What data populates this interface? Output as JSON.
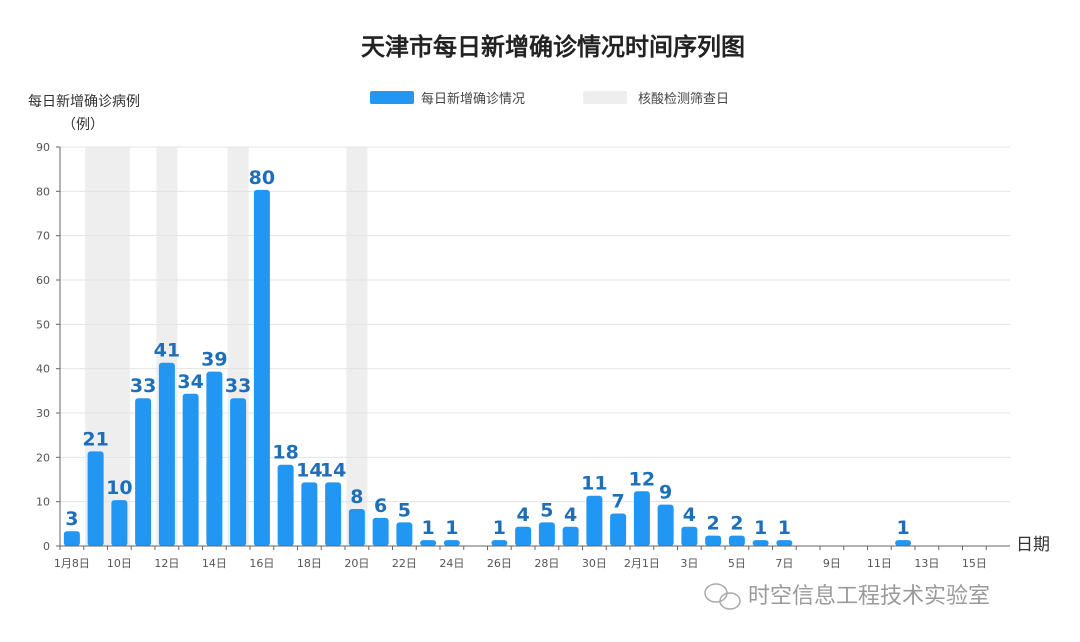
{
  "chart_data": {
    "type": "bar",
    "title": "天津市每日新增确诊情况时间序列图",
    "ylabel": "每日新增确诊病例",
    "ylabel_unit": "（例）",
    "xlabel": "日期",
    "ylim": [
      0,
      90
    ],
    "yticks": [
      0,
      10,
      20,
      30,
      40,
      50,
      60,
      70,
      80,
      90
    ],
    "grid": true,
    "legend_position": "top-center",
    "series": [
      {
        "name": "每日新增确诊情况",
        "color": "#2196f3",
        "values": [
          3,
          21,
          10,
          33,
          41,
          34,
          39,
          33,
          80,
          18,
          14,
          14,
          8,
          6,
          5,
          1,
          1,
          0,
          1,
          4,
          5,
          4,
          11,
          7,
          12,
          9,
          4,
          2,
          2,
          1,
          1,
          0,
          0,
          0,
          0,
          1,
          0,
          0,
          0,
          0
        ]
      },
      {
        "name": "核酸检测筛查日",
        "color": "#eeeeee"
      }
    ],
    "categories": [
      "1月8日",
      "1月9日",
      "1月10日",
      "1月11日",
      "1月12日",
      "1月13日",
      "1月14日",
      "1月15日",
      "1月16日",
      "1月17日",
      "1月18日",
      "1月19日",
      "1月20日",
      "1月21日",
      "1月22日",
      "1月23日",
      "1月24日",
      "1月25日",
      "1月26日",
      "1月27日",
      "1月28日",
      "1月29日",
      "1月30日",
      "1月31日",
      "2月1日",
      "2月2日",
      "2月3日",
      "2月4日",
      "2月5日",
      "2月6日",
      "2月7日",
      "2月8日",
      "2月9日",
      "2月10日",
      "2月11日",
      "2月12日",
      "2月13日",
      "2月14日",
      "2月15日",
      "2月16日"
    ],
    "tick_labels": [
      "1月8日",
      "10日",
      "12日",
      "14日",
      "16日",
      "18日",
      "20日",
      "22日",
      "24日",
      "26日",
      "28日",
      "30日",
      "2月1日",
      "3日",
      "5日",
      "7日",
      "9日",
      "11日",
      "13日",
      "15日"
    ],
    "screening_day_indices": [
      1,
      2,
      4,
      7,
      12
    ],
    "label_color": "#1f6fb8"
  },
  "watermark": "时空信息工程技术实验室"
}
